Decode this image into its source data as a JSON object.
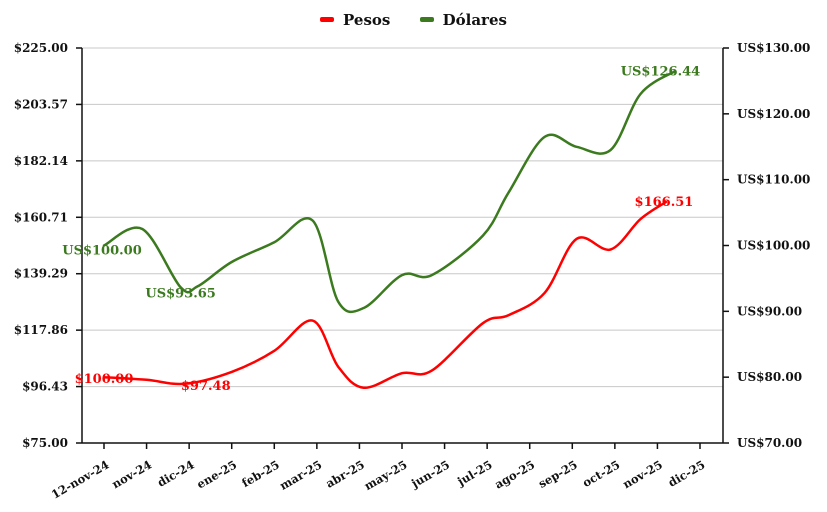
{
  "chart_data": {
    "type": "line",
    "title": "",
    "legend": {
      "placement": "top-center"
    },
    "categories": [
      "12-nov-24",
      "nov-24",
      "dic-24",
      "ene-25",
      "feb-25",
      "mar-25",
      "abr-25",
      "may-25",
      "jun-25",
      "jul-25",
      "ago-25",
      "sep-25",
      "oct-25",
      "nov-25",
      "dic-25"
    ],
    "left_axis": {
      "ylim": [
        75,
        225
      ],
      "ticks": [
        "$75.00",
        "$96.43",
        "$117.86",
        "$139.29",
        "$160.71",
        "$182.14",
        "$203.57",
        "$225.00"
      ]
    },
    "right_axis": {
      "ylim": [
        70,
        130
      ],
      "ticks": [
        "US$70.00",
        "US$80.00",
        "US$90.00",
        "US$100.00",
        "US$110.00",
        "US$120.00",
        "US$130.00"
      ]
    },
    "grid": true,
    "series": [
      {
        "name": "Pesos",
        "color": "#ff0000",
        "axis": "left",
        "x": [
          0,
          1,
          1.9,
          3,
          4,
          4.9,
          5.5,
          6.1,
          7,
          7.7,
          8.9,
          9.5,
          10.35,
          11.1,
          11.9,
          12.6,
          13.2
        ],
        "y": [
          100.0,
          99.0,
          97.48,
          102,
          110,
          121.5,
          104,
          96,
          101.5,
          102.5,
          120.5,
          123.5,
          132,
          152.5,
          148.5,
          160,
          166.51
        ],
        "labels": [
          {
            "point": 0,
            "text": "$100.00"
          },
          {
            "point": 2,
            "text": "$97.48"
          },
          {
            "point": 16,
            "text": "$166.51"
          }
        ]
      },
      {
        "name": "Dólares",
        "color": "#3b7a1e",
        "axis": "right",
        "x": [
          0,
          0.9,
          1.8,
          2.2,
          3,
          4,
          4.9,
          5.5,
          6.1,
          7,
          7.7,
          8.9,
          9.5,
          10.35,
          11.1,
          11.9,
          12.6,
          13.4
        ],
        "y": [
          100.0,
          102.5,
          93.65,
          93.8,
          97.5,
          100.5,
          103.8,
          91.5,
          90.5,
          95.5,
          95.5,
          101.5,
          108.0,
          116.5,
          115,
          114.5,
          123,
          126.44
        ],
        "labels": [
          {
            "point": 0,
            "text": "US$100.00"
          },
          {
            "point": 2,
            "text": "US$93.65"
          },
          {
            "point": 17,
            "text": "US$126.44"
          }
        ]
      }
    ]
  }
}
